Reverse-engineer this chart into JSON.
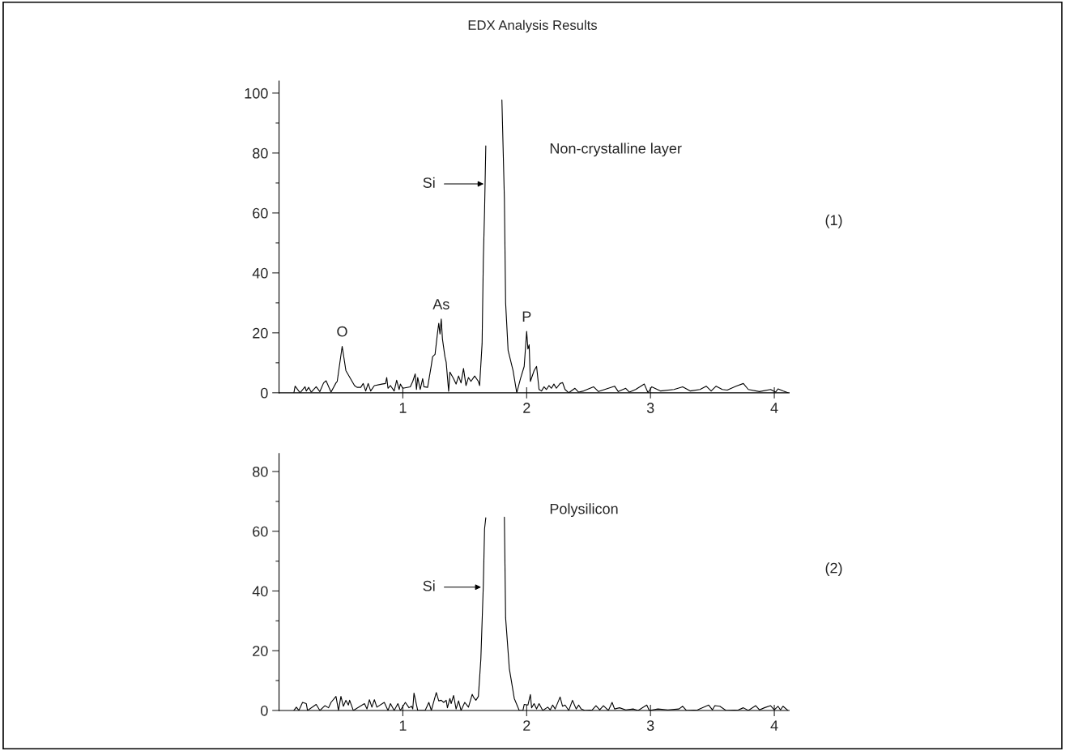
{
  "chart_data": [
    {
      "type": "line",
      "title": "EDX Analysis Results",
      "xlim": [
        0,
        4.12
      ],
      "ylim": [
        0,
        104
      ],
      "xticks": [
        1,
        2,
        3,
        4
      ],
      "yticks": [
        0,
        20,
        40,
        60,
        80,
        100
      ],
      "grid": false,
      "legend": false,
      "marker": "none",
      "line_style": "solid",
      "series": [
        {
          "color": "#000000",
          "x": [
            0.12,
            0.13,
            0.17,
            0.21,
            0.22,
            0.24,
            0.26,
            0.3,
            0.33,
            0.36,
            0.38,
            0.42,
            0.46,
            0.47,
            0.51,
            0.54,
            0.59,
            0.61,
            0.63,
            0.66,
            0.68,
            0.7,
            0.72,
            0.74,
            0.77,
            0.83,
            0.86,
            0.87,
            0.88,
            0.9,
            0.93,
            0.95,
            0.97,
            0.98,
            1.0,
            1.06,
            1.08,
            1.1,
            1.11,
            1.12,
            1.14,
            1.16,
            1.17,
            1.2,
            1.23,
            1.24,
            1.26,
            1.28,
            1.29,
            1.3,
            1.31,
            1.32,
            1.34,
            1.35,
            1.37,
            1.38,
            1.41,
            1.43,
            1.45,
            1.47,
            1.49,
            1.51,
            1.53,
            1.55,
            1.58,
            1.61,
            1.62,
            1.64,
            1.65,
            1.66,
            1.67,
            1.68,
            1.79,
            1.8,
            1.82,
            1.83,
            1.85,
            1.89,
            1.92,
            1.95,
            1.98,
            2.0,
            2.01,
            2.02,
            2.03,
            2.06,
            2.08,
            2.1,
            2.12,
            2.14,
            2.16,
            2.18,
            2.2,
            2.22,
            2.24,
            2.27,
            2.29,
            2.31,
            2.34,
            2.39,
            2.42,
            2.46,
            2.54,
            2.58,
            2.63,
            2.71,
            2.74,
            2.8,
            2.83,
            2.88,
            2.95,
            2.98,
            3.01,
            3.08,
            3.19,
            3.26,
            3.32,
            3.4,
            3.45,
            3.49,
            3.53,
            3.58,
            3.62,
            3.69,
            3.75,
            3.79,
            3.88,
            3.97,
            4.01,
            4.03,
            4.07,
            4.11
          ],
          "values": [
            0,
            2.2,
            0,
            2.0,
            0.6,
            1.8,
            0.2,
            2.0,
            0.4,
            3.3,
            4.0,
            0.2,
            3.3,
            3.8,
            15.5,
            7.4,
            3.8,
            2.4,
            1.8,
            1.8,
            3.1,
            0.6,
            3.1,
            0.6,
            2.4,
            2.9,
            3.1,
            5.1,
            1.5,
            2.4,
            0.6,
            4.2,
            1.1,
            2.9,
            1.5,
            2.0,
            3.8,
            6.3,
            1.1,
            5.1,
            1.1,
            4.7,
            2.0,
            1.8,
            9.2,
            12.0,
            12.8,
            20.0,
            23.2,
            19.6,
            24.6,
            17.9,
            12.0,
            10.2,
            0.5,
            6.9,
            4.7,
            2.9,
            5.6,
            3.3,
            8.1,
            2.4,
            5.1,
            3.8,
            5.6,
            3.8,
            2.4,
            16.4,
            44.4,
            60.7,
            82.4,
            null,
            null,
            97.7,
            64.8,
            30,
            14.2,
            7.4,
            0,
            4.7,
            8.8,
            20.5,
            14.6,
            16,
            3.8,
            7.4,
            8.8,
            1.1,
            0.6,
            2.0,
            1.1,
            2.4,
            1.5,
            2.9,
            1.5,
            3.1,
            3.4,
            1.1,
            0,
            1.5,
            0.2,
            0.6,
            2.0,
            0.4,
            1.1,
            2.2,
            0.4,
            1.5,
            0.2,
            1.1,
            2.9,
            0,
            2.0,
            0.6,
            1.1,
            2.0,
            0.6,
            1.1,
            2.2,
            0.6,
            2.2,
            1.1,
            0.9,
            2.2,
            3.1,
            1.1,
            0.4,
            1.1,
            0.2,
            1.3,
            0.6,
            0
          ]
        }
      ],
      "annotations": [
        "Si",
        {
          "text": "O",
          "x": 0.51,
          "y": 15.5
        },
        {
          "text": "As",
          "x": 1.31,
          "y": 24.6
        },
        {
          "text": "P",
          "x": 2.0,
          "y": 20.5
        },
        "Non-crystalline layer",
        "(1)"
      ]
    },
    {
      "type": "line",
      "xlim": [
        0,
        4.12
      ],
      "ylim": [
        0,
        86
      ],
      "xticks": [
        1,
        2,
        3,
        4
      ],
      "yticks": [
        0,
        20,
        40,
        60,
        80
      ],
      "grid": false,
      "legend": false,
      "marker": "none",
      "line_style": "solid",
      "series": [
        {
          "color": "#000000",
          "x": [
            0.12,
            0.14,
            0.16,
            0.19,
            0.22,
            0.23,
            0.3,
            0.33,
            0.37,
            0.4,
            0.42,
            0.46,
            0.48,
            0.5,
            0.52,
            0.54,
            0.56,
            0.57,
            0.6,
            0.69,
            0.71,
            0.73,
            0.75,
            0.77,
            0.79,
            0.85,
            0.88,
            0.9,
            0.93,
            0.96,
            0.98,
            1.02,
            1.05,
            1.07,
            1.08,
            1.09,
            1.12,
            1.18,
            1.21,
            1.23,
            1.27,
            1.29,
            1.31,
            1.33,
            1.35,
            1.36,
            1.38,
            1.39,
            1.41,
            1.43,
            1.45,
            1.47,
            1.5,
            1.53,
            1.56,
            1.57,
            1.59,
            1.61,
            1.63,
            1.65,
            1.66,
            1.67,
            1.68,
            1.81,
            1.82,
            1.83,
            1.86,
            1.9,
            1.94,
            1.97,
            1.98,
            2.01,
            2.03,
            2.04,
            2.06,
            2.08,
            2.1,
            2.13,
            2.17,
            2.19,
            2.21,
            2.23,
            2.27,
            2.29,
            2.31,
            2.34,
            2.37,
            2.4,
            2.42,
            2.44,
            2.47,
            2.53,
            2.56,
            2.59,
            2.62,
            2.66,
            2.69,
            2.71,
            2.75,
            2.8,
            2.86,
            2.9,
            2.97,
            2.99,
            3.06,
            3.14,
            3.23,
            3.26,
            3.29,
            3.38,
            3.47,
            3.5,
            3.52,
            3.56,
            3.61,
            3.71,
            3.75,
            3.79,
            3.85,
            3.88,
            3.92,
            3.97,
            4.0,
            4.03,
            4.05,
            4.07,
            4.11
          ],
          "values": [
            0,
            1.1,
            0,
            2.7,
            2.3,
            0,
            2.0,
            0,
            1.6,
            0.9,
            2.7,
            4.7,
            0,
            4.7,
            1.4,
            3.4,
            1.8,
            3.4,
            0,
            2.3,
            0.5,
            3.6,
            1.1,
            3.6,
            1.1,
            2.7,
            0,
            2.3,
            0,
            2.3,
            0,
            2.7,
            0.9,
            1.4,
            0.5,
            5.8,
            0,
            0,
            2.7,
            0,
            6.0,
            3.2,
            3.4,
            2.7,
            3.4,
            0.9,
            4.0,
            2.3,
            5.0,
            0.5,
            3.2,
            0,
            2.7,
            1.1,
            5.4,
            4.5,
            3.4,
            4.7,
            17.2,
            42,
            60.8,
            64.5,
            null,
            null,
            64.7,
            31,
            14,
            4,
            0,
            0,
            2.0,
            1.8,
            5.3,
            0.9,
            2.3,
            0.5,
            2.3,
            0,
            1.1,
            0.2,
            1.8,
            0.5,
            4.5,
            1.4,
            1.8,
            0,
            3.4,
            0.5,
            1.8,
            0.5,
            0,
            0.2,
            1.6,
            0.2,
            1.6,
            0,
            2.7,
            0.5,
            0.9,
            0.2,
            0.5,
            0,
            1.8,
            0,
            0.5,
            0.2,
            0.5,
            1.4,
            0,
            0.2,
            1.8,
            0.2,
            1.6,
            1.4,
            0,
            0.2,
            0.9,
            0,
            1.6,
            0.2,
            0.9,
            1.6,
            0.2,
            1.4,
            0.2,
            1.4,
            0
          ]
        }
      ],
      "annotations": [
        "Si",
        "Polysilicon",
        "(2)"
      ]
    }
  ]
}
